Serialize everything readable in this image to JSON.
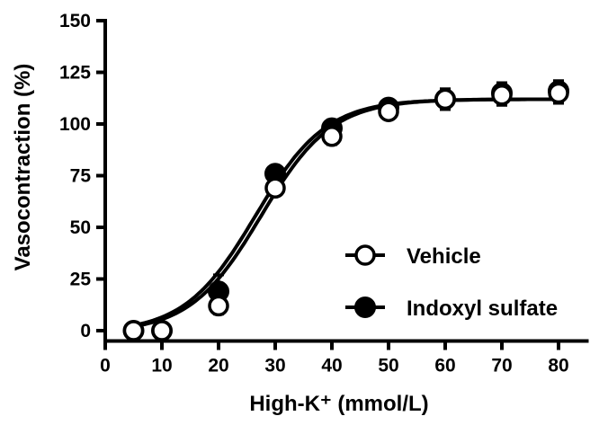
{
  "chart_data": {
    "type": "scatter",
    "title": "",
    "xlabel": "High-K⁺ (mmol/L)",
    "ylabel": "Vasocontraction (%)",
    "xlim": [
      0,
      85
    ],
    "ylim": [
      -5,
      150
    ],
    "xticks": [
      "0",
      "10",
      "20",
      "30",
      "40",
      "50",
      "60",
      "70",
      "80"
    ],
    "yticks": [
      "0",
      "25",
      "50",
      "75",
      "100",
      "125",
      "150"
    ],
    "legend_position": "center-right",
    "series": [
      {
        "name": "Vehicle",
        "marker": "open-circle",
        "color": "#000000",
        "x": [
          5,
          10,
          20,
          30,
          40,
          50,
          60,
          70,
          80
        ],
        "y": [
          0,
          0,
          12,
          69,
          94,
          106,
          112,
          114,
          115
        ],
        "error": [
          0,
          0,
          4,
          2,
          4,
          3,
          5,
          5,
          5
        ],
        "fit": {
          "bottom": -1,
          "top": 112,
          "ec50": 27.5,
          "hill": 0.16
        }
      },
      {
        "name": "Indoxyl sulfate",
        "marker": "filled-circle",
        "color": "#000000",
        "x": [
          5,
          10,
          20,
          30,
          40,
          50,
          60,
          70,
          80
        ],
        "y": [
          0,
          0,
          19,
          76,
          98,
          108,
          112,
          115,
          116
        ],
        "error": [
          0,
          0,
          8,
          3,
          4,
          3,
          5,
          5,
          5
        ],
        "fit": {
          "bottom": -1,
          "top": 112,
          "ec50": 26.5,
          "hill": 0.16
        }
      }
    ]
  }
}
